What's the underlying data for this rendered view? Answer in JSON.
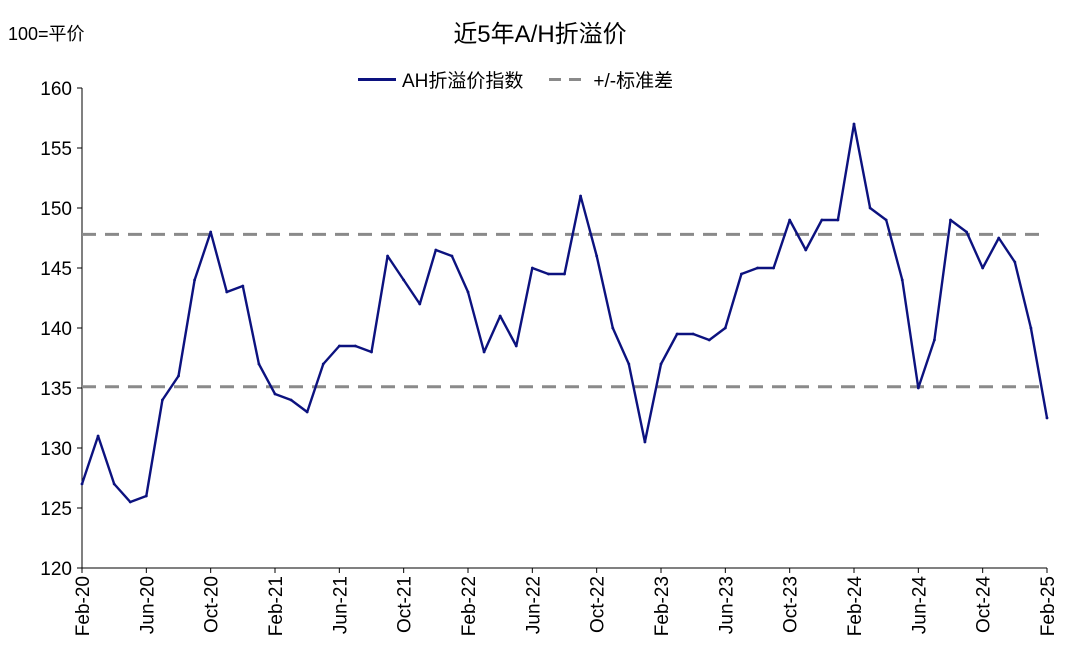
{
  "unit_label": "100=平价",
  "chart_data": {
    "type": "line",
    "title": "近5年A/H折溢价",
    "ylim": [
      120,
      160
    ],
    "y_ticks": [
      120,
      125,
      130,
      135,
      140,
      145,
      150,
      155,
      160
    ],
    "x_tick_labels": [
      "Feb-20",
      "Jun-20",
      "Oct-20",
      "Feb-21",
      "Jun-21",
      "Oct-21",
      "Feb-22",
      "Jun-22",
      "Oct-22",
      "Feb-23",
      "Jun-23",
      "Oct-23",
      "Feb-24",
      "Jun-24",
      "Oct-24",
      "Feb-25"
    ],
    "x": [
      "Feb-20",
      "Mar-20",
      "Apr-20",
      "May-20",
      "Jun-20",
      "Jul-20",
      "Aug-20",
      "Sep-20",
      "Oct-20",
      "Nov-20",
      "Dec-20",
      "Jan-21",
      "Feb-21",
      "Mar-21",
      "Apr-21",
      "May-21",
      "Jun-21",
      "Jul-21",
      "Aug-21",
      "Sep-21",
      "Oct-21",
      "Nov-21",
      "Dec-21",
      "Jan-22",
      "Feb-22",
      "Mar-22",
      "Apr-22",
      "May-22",
      "Jun-22",
      "Jul-22",
      "Aug-22",
      "Sep-22",
      "Oct-22",
      "Nov-22",
      "Dec-22",
      "Jan-23",
      "Feb-23",
      "Mar-23",
      "Apr-23",
      "May-23",
      "Jun-23",
      "Jul-23",
      "Aug-23",
      "Sep-23",
      "Oct-23",
      "Nov-23",
      "Dec-23",
      "Jan-24",
      "Feb-24",
      "Mar-24",
      "Apr-24",
      "May-24",
      "Jun-24",
      "Jul-24",
      "Aug-24",
      "Sep-24",
      "Oct-24",
      "Nov-24",
      "Dec-24",
      "Jan-25",
      "Feb-25"
    ],
    "series": [
      {
        "name": "AH折溢价指数",
        "color": "#0c127f",
        "style": "solid",
        "values": [
          127.0,
          131.0,
          127.0,
          125.5,
          126.0,
          134.0,
          136.0,
          144.0,
          148.0,
          143.0,
          143.5,
          137.0,
          134.5,
          134.0,
          133.0,
          137.0,
          138.5,
          138.5,
          138.0,
          146.0,
          144.0,
          142.0,
          146.5,
          146.0,
          143.0,
          138.0,
          141.0,
          138.5,
          145.0,
          144.5,
          144.5,
          151.0,
          146.0,
          140.0,
          137.0,
          130.5,
          137.0,
          139.5,
          139.5,
          139.0,
          140.0,
          144.5,
          145.0,
          145.0,
          149.0,
          146.5,
          149.0,
          149.0,
          157.0,
          150.0,
          149.0,
          144.0,
          135.0,
          139.0,
          149.0,
          148.0,
          145.0,
          147.5,
          145.5,
          140.0,
          132.5
        ]
      },
      {
        "name": "+/-标准差",
        "color": "#8a8a8a",
        "style": "dashed",
        "upper": 147.8,
        "lower": 135.1
      }
    ],
    "legend_position": "top-center",
    "grid": false
  }
}
